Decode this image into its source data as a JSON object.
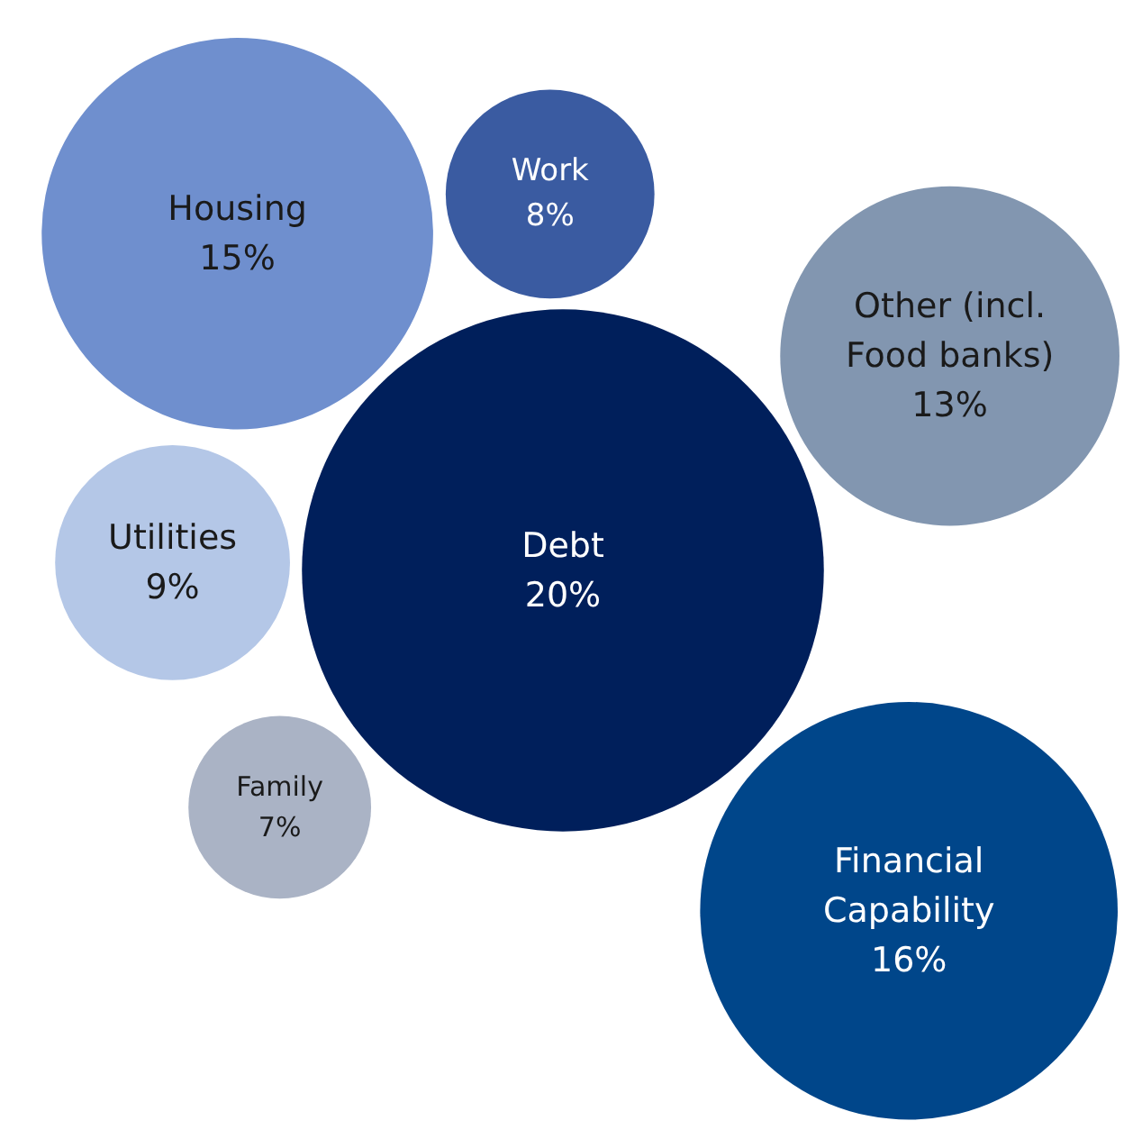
{
  "chart_data": {
    "type": "other",
    "categories": [
      "Debt",
      "Financial Capability",
      "Housing",
      "Other (incl. Food banks)",
      "Utilities",
      "Work",
      "Family"
    ],
    "values": [
      20,
      16,
      15,
      13,
      9,
      8,
      7
    ],
    "value_labels": [
      "20%",
      "16%",
      "15%",
      "13%",
      "9%",
      "8%",
      "7%"
    ],
    "colors": [
      "#001f5b",
      "#00468a",
      "#6f8fce",
      "#8296b0",
      "#b4c7e7",
      "#3a5ba1",
      "#aab3c5"
    ]
  }
}
